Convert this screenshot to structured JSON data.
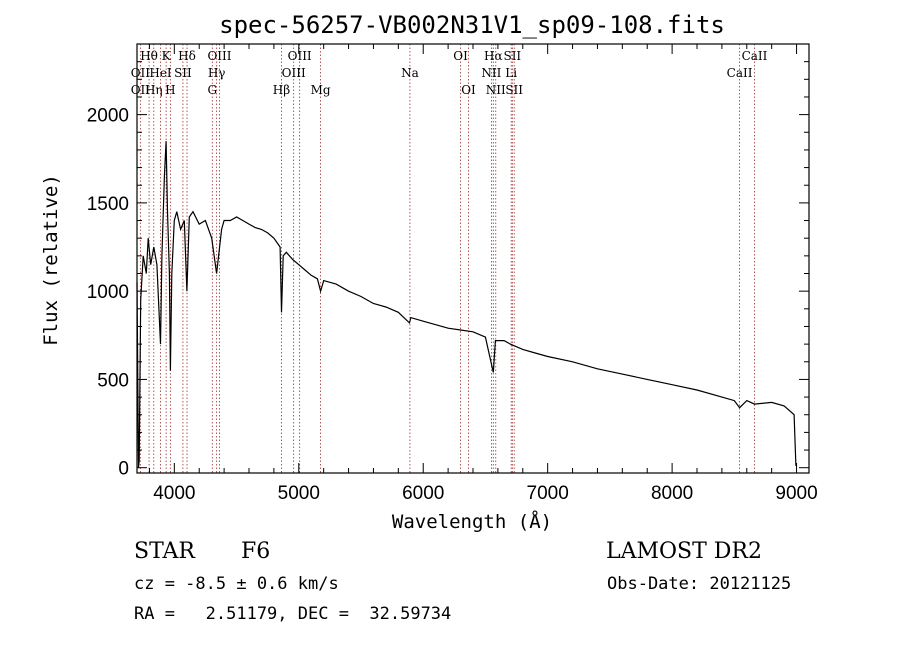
{
  "chart_data": {
    "type": "line",
    "title": "spec-56257-VB002N31V1_sp09-108.fits",
    "xlabel": "Wavelength (Å)",
    "ylabel": "Flux (relative)",
    "xlim": [
      3700,
      9100
    ],
    "ylim": [
      -30,
      2400
    ],
    "x_ticks": [
      "4000",
      "5000",
      "6000",
      "7000",
      "8000",
      "9000"
    ],
    "y_ticks": [
      "0",
      "500",
      "1000",
      "1500",
      "2000"
    ],
    "series": [
      {
        "color": "#000000",
        "points": [
          [
            3700,
            1050
          ],
          [
            3712,
            0
          ],
          [
            3718,
            40
          ],
          [
            3730,
            950
          ],
          [
            3750,
            1200
          ],
          [
            3775,
            1100
          ],
          [
            3790,
            1300
          ],
          [
            3810,
            1150
          ],
          [
            3835,
            1250
          ],
          [
            3860,
            1150
          ],
          [
            3889,
            700
          ],
          [
            3900,
            1200
          ],
          [
            3920,
            1650
          ],
          [
            3934,
            1850
          ],
          [
            3945,
            1450
          ],
          [
            3960,
            1100
          ],
          [
            3968,
            550
          ],
          [
            3980,
            1100
          ],
          [
            4000,
            1400
          ],
          [
            4020,
            1450
          ],
          [
            4050,
            1350
          ],
          [
            4080,
            1400
          ],
          [
            4101,
            1000
          ],
          [
            4120,
            1420
          ],
          [
            4150,
            1450
          ],
          [
            4200,
            1380
          ],
          [
            4250,
            1400
          ],
          [
            4300,
            1300
          ],
          [
            4340,
            1100
          ],
          [
            4380,
            1350
          ],
          [
            4400,
            1400
          ],
          [
            4450,
            1400
          ],
          [
            4500,
            1420
          ],
          [
            4550,
            1400
          ],
          [
            4600,
            1380
          ],
          [
            4650,
            1360
          ],
          [
            4700,
            1350
          ],
          [
            4750,
            1330
          ],
          [
            4800,
            1300
          ],
          [
            4850,
            1250
          ],
          [
            4861,
            880
          ],
          [
            4875,
            1200
          ],
          [
            4900,
            1220
          ],
          [
            4950,
            1180
          ],
          [
            5000,
            1150
          ],
          [
            5050,
            1120
          ],
          [
            5100,
            1090
          ],
          [
            5150,
            1070
          ],
          [
            5175,
            1000
          ],
          [
            5200,
            1060
          ],
          [
            5300,
            1040
          ],
          [
            5400,
            1000
          ],
          [
            5500,
            970
          ],
          [
            5600,
            930
          ],
          [
            5700,
            910
          ],
          [
            5800,
            880
          ],
          [
            5890,
            820
          ],
          [
            5900,
            850
          ],
          [
            6000,
            830
          ],
          [
            6100,
            810
          ],
          [
            6200,
            790
          ],
          [
            6300,
            780
          ],
          [
            6400,
            770
          ],
          [
            6500,
            740
          ],
          [
            6563,
            540
          ],
          [
            6580,
            720
          ],
          [
            6650,
            720
          ],
          [
            6700,
            700
          ],
          [
            6800,
            670
          ],
          [
            6900,
            650
          ],
          [
            7000,
            630
          ],
          [
            7200,
            600
          ],
          [
            7400,
            560
          ],
          [
            7600,
            530
          ],
          [
            7800,
            500
          ],
          [
            8000,
            470
          ],
          [
            8200,
            440
          ],
          [
            8400,
            400
          ],
          [
            8500,
            380
          ],
          [
            8542,
            340
          ],
          [
            8600,
            380
          ],
          [
            8662,
            360
          ],
          [
            8800,
            370
          ],
          [
            8900,
            350
          ],
          [
            8980,
            300
          ],
          [
            8995,
            10
          ]
        ]
      }
    ],
    "lines": [
      {
        "name": "Hθ",
        "wl": 3797,
        "row": 1
      },
      {
        "name": "OII",
        "wl": 3727,
        "row": 2
      },
      {
        "name": "OII",
        "wl": 3727,
        "row": 3
      },
      {
        "name": "Hη",
        "wl": 3835,
        "row": 3
      },
      {
        "name": "K",
        "wl": 3934,
        "row": 1
      },
      {
        "name": "HeI",
        "wl": 3889,
        "row": 2
      },
      {
        "name": "SII",
        "wl": 4069,
        "row": 2
      },
      {
        "name": "H",
        "wl": 3968,
        "row": 3
      },
      {
        "name": "Hδ",
        "wl": 4102,
        "row": 1
      },
      {
        "name": "OIII",
        "wl": 4363,
        "row": 1
      },
      {
        "name": "Hγ",
        "wl": 4340,
        "row": 2
      },
      {
        "name": "G",
        "wl": 4305,
        "row": 3
      },
      {
        "name": "Hβ",
        "wl": 4861,
        "row": 3
      },
      {
        "name": "OIII",
        "wl": 5007,
        "row": 1
      },
      {
        "name": "OIII",
        "wl": 4959,
        "row": 2
      },
      {
        "name": "Mg",
        "wl": 5175,
        "row": 3
      },
      {
        "name": "Na",
        "wl": 5893,
        "row": 2
      },
      {
        "name": "OI",
        "wl": 6300,
        "row": 1
      },
      {
        "name": "OI",
        "wl": 6364,
        "row": 3
      },
      {
        "name": "Hα",
        "wl": 6563,
        "row": 1
      },
      {
        "name": "NII",
        "wl": 6548,
        "row": 2
      },
      {
        "name": "NII",
        "wl": 6583,
        "row": 3
      },
      {
        "name": "SII",
        "wl": 6716,
        "row": 1
      },
      {
        "name": "Li",
        "wl": 6707,
        "row": 2
      },
      {
        "name": "SII",
        "wl": 6731,
        "row": 3
      },
      {
        "name": "CaII",
        "wl": 8662,
        "row": 1
      },
      {
        "name": "CaII",
        "wl": 8542,
        "row": 2
      }
    ]
  },
  "info": {
    "class": "STAR",
    "subclass": "F6",
    "survey": "LAMOST DR2",
    "redshift": "cz = -8.5 ± 0.6 km/s",
    "obsdate": "Obs-Date: 20121125",
    "coords": "RA =   2.51179, DEC =  32.59734"
  }
}
